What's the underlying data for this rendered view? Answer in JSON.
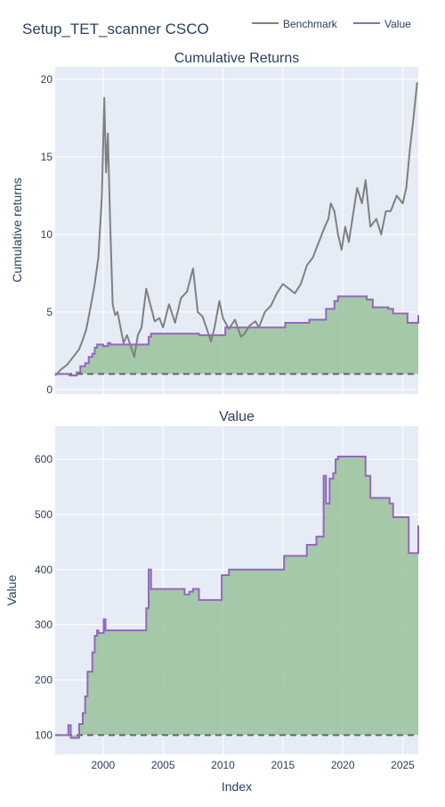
{
  "figure": {
    "title": "Setup_TET_scanner CSCO",
    "legend": [
      {
        "name": "Benchmark",
        "color": "#808080"
      },
      {
        "name": "Value",
        "color": "#9467bd"
      }
    ],
    "colors": {
      "plot_bg": "#e5ecf6",
      "grid": "#ffffff",
      "fill": "#8fbc8f",
      "benchmark": "#808080",
      "value": "#9467bd",
      "baseline": "#666666",
      "text": "#2a3f5f"
    }
  },
  "chart_data": [
    {
      "type": "line",
      "title": "Cumulative Returns",
      "ylabel": "Cumulative returns",
      "xlabel": "",
      "xlim": [
        1996.0,
        2026.3
      ],
      "ylim": [
        -0.3,
        20.8
      ],
      "y_ticks": [
        0,
        5,
        10,
        15,
        20
      ],
      "x_ticks": [
        2000,
        2005,
        2010,
        2015,
        2020,
        2025
      ],
      "baseline": 1,
      "grid": true,
      "series": [
        {
          "name": "Benchmark",
          "x": [
            1996.0,
            1996.5,
            1997.0,
            1997.5,
            1998.0,
            1998.3,
            1998.6,
            1999.0,
            1999.3,
            1999.6,
            1999.9,
            2000.1,
            2000.25,
            2000.4,
            2000.6,
            2000.8,
            2001.0,
            2001.2,
            2001.5,
            2001.7,
            2002.0,
            2002.3,
            2002.6,
            2002.9,
            2003.2,
            2003.6,
            2004.0,
            2004.3,
            2004.7,
            2005.0,
            2005.5,
            2006.0,
            2006.5,
            2007.0,
            2007.5,
            2007.9,
            2008.3,
            2008.7,
            2009.0,
            2009.3,
            2009.7,
            2010.0,
            2010.5,
            2011.0,
            2011.5,
            2011.8,
            2012.2,
            2012.7,
            2013.0,
            2013.5,
            2014.0,
            2014.5,
            2015.0,
            2015.5,
            2016.0,
            2016.5,
            2017.0,
            2017.5,
            2018.0,
            2018.5,
            2018.8,
            2019.0,
            2019.3,
            2019.6,
            2019.9,
            2020.2,
            2020.5,
            2020.9,
            2021.2,
            2021.6,
            2021.9,
            2022.3,
            2022.8,
            2023.2,
            2023.6,
            2024.0,
            2024.5,
            2025.0,
            2025.3,
            2025.6,
            2025.9,
            2026.2
          ],
          "y": [
            0.9,
            1.3,
            1.6,
            2.1,
            2.6,
            3.2,
            3.9,
            5.5,
            6.8,
            8.5,
            12.5,
            18.8,
            14.0,
            16.5,
            10.5,
            5.5,
            4.8,
            5.0,
            3.8,
            3.0,
            3.5,
            2.8,
            2.1,
            3.5,
            4.0,
            6.5,
            5.3,
            4.4,
            4.6,
            4.0,
            5.5,
            4.3,
            5.9,
            6.3,
            7.8,
            5.0,
            4.7,
            3.8,
            3.1,
            4.0,
            5.7,
            4.6,
            3.9,
            4.5,
            3.4,
            3.6,
            4.1,
            4.4,
            4.0,
            5.0,
            5.4,
            6.2,
            6.8,
            6.5,
            6.2,
            6.8,
            8.0,
            8.5,
            9.5,
            10.5,
            11.0,
            12.0,
            11.5,
            10.0,
            9.0,
            10.5,
            9.5,
            11.5,
            13.0,
            12.0,
            13.5,
            10.5,
            11.0,
            10.0,
            11.5,
            11.5,
            12.5,
            12.0,
            13.0,
            15.5,
            17.5,
            19.8
          ]
        },
        {
          "name": "Value",
          "x": [
            1996.0,
            1997.0,
            1997.2,
            1997.5,
            1997.8,
            1998.1,
            1998.5,
            1998.8,
            1999.1,
            1999.3,
            1999.5,
            2000.0,
            2000.4,
            2000.6,
            2001.0,
            2003.6,
            2003.8,
            2004.0,
            2007.0,
            2007.2,
            2008.0,
            2009.8,
            2010.2,
            2013.0,
            2015.0,
            2015.2,
            2016.5,
            2017.2,
            2018.0,
            2018.6,
            2019.3,
            2019.6,
            2021.6,
            2022.0,
            2022.5,
            2023.5,
            2023.8,
            2024.2,
            2025.1,
            2025.4,
            2026.0,
            2026.3
          ],
          "y": [
            1.0,
            1.0,
            0.9,
            0.9,
            1.1,
            1.5,
            1.7,
            2.1,
            2.3,
            2.7,
            2.9,
            2.8,
            3.0,
            2.9,
            2.9,
            2.9,
            3.4,
            3.6,
            3.6,
            3.6,
            3.5,
            3.5,
            4.0,
            4.0,
            4.0,
            4.3,
            4.3,
            4.5,
            4.5,
            5.2,
            5.7,
            6.0,
            6.0,
            5.8,
            5.3,
            5.3,
            5.2,
            4.9,
            4.9,
            4.3,
            4.3,
            4.8
          ]
        }
      ]
    },
    {
      "type": "area",
      "title": "Value",
      "ylabel": "Value",
      "xlabel": "Index",
      "xlim": [
        1996.0,
        2026.3
      ],
      "ylim": [
        65,
        660
      ],
      "y_ticks": [
        100,
        200,
        300,
        400,
        500,
        600
      ],
      "x_ticks": [
        2000,
        2005,
        2010,
        2015,
        2020,
        2025
      ],
      "baseline": 100,
      "grid": true,
      "series": [
        {
          "name": "Value",
          "x": [
            1996.0,
            1997.0,
            1997.1,
            1997.3,
            1997.8,
            1998.0,
            1998.3,
            1998.5,
            1998.7,
            1999.0,
            1999.1,
            1999.3,
            1999.5,
            1999.6,
            2000.0,
            2000.05,
            2000.2,
            2000.3,
            2000.5,
            2003.5,
            2003.6,
            2003.8,
            2004.0,
            2006.5,
            2006.8,
            2007.2,
            2007.5,
            2008.0,
            2009.7,
            2009.9,
            2010.5,
            2015.0,
            2015.1,
            2016.7,
            2017.0,
            2017.8,
            2018.4,
            2018.6,
            2018.9,
            2019.2,
            2019.4,
            2019.6,
            2021.7,
            2021.9,
            2022.3,
            2023.6,
            2023.9,
            2024.2,
            2025.2,
            2025.5,
            2026.0,
            2026.3
          ],
          "y": [
            100,
            100,
            118,
            95,
            95,
            120,
            140,
            170,
            215,
            215,
            250,
            280,
            290,
            285,
            285,
            310,
            290,
            290,
            290,
            290,
            330,
            400,
            365,
            365,
            355,
            360,
            365,
            345,
            345,
            390,
            400,
            400,
            425,
            425,
            445,
            460,
            570,
            520,
            565,
            575,
            600,
            605,
            605,
            570,
            530,
            530,
            520,
            495,
            495,
            430,
            430,
            480
          ]
        }
      ]
    }
  ]
}
